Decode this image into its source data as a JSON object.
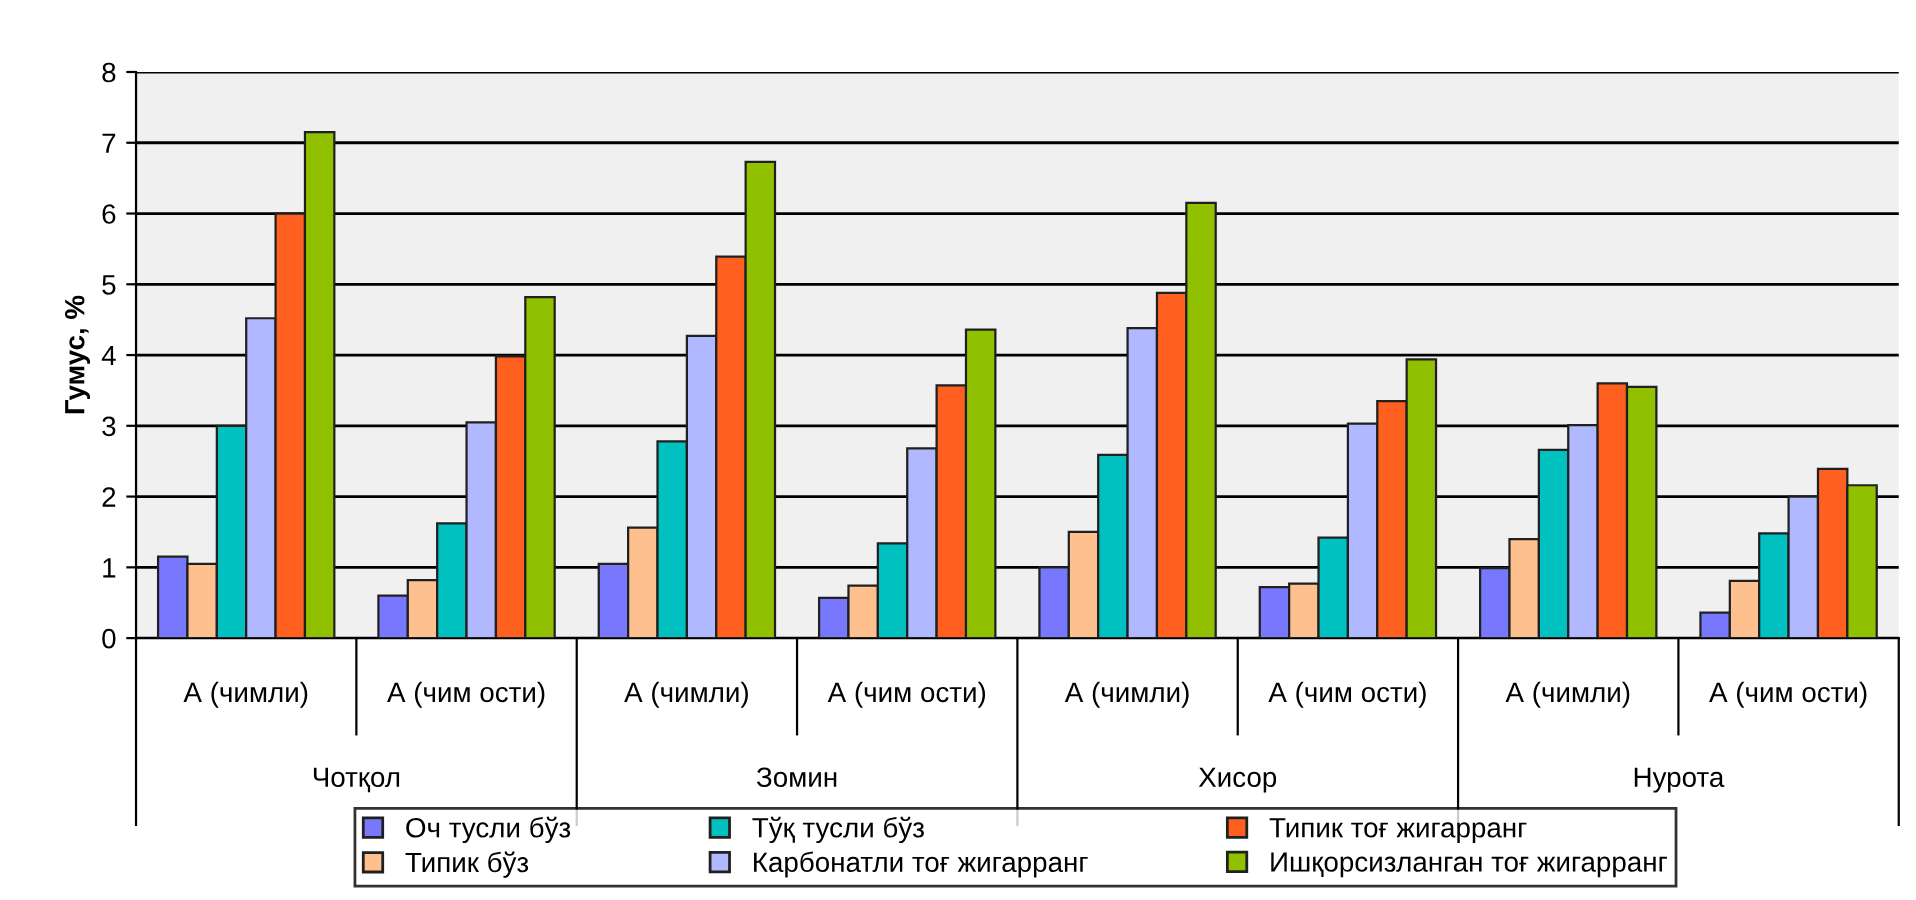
{
  "chart_data": {
    "type": "bar",
    "ylabel": "Гумус, %",
    "categories": [
      "А (чимли)",
      "А (чим ости)",
      "А (чимли)",
      "А (чим ости)",
      "А (чимли)",
      "А (чим ости)",
      "А (чимли)",
      "А (чим ости)"
    ],
    "annotations": [
      "Чотқол",
      "Зомин",
      "Хисор",
      "Нурота"
    ],
    "series": [
      {
        "name": "Оч тусли бўз",
        "color": "#7878ff",
        "values": [
          1.15,
          0.6,
          1.05,
          0.57,
          1.0,
          0.72,
          0.99,
          0.36
        ]
      },
      {
        "name": "Типик бўз",
        "color": "#ffc090",
        "values": [
          1.05,
          0.82,
          1.56,
          0.74,
          1.5,
          0.77,
          1.4,
          0.81
        ]
      },
      {
        "name": "Тўқ тусли бўз",
        "color": "#00c0c0",
        "values": [
          3.0,
          1.62,
          2.78,
          1.34,
          2.59,
          1.42,
          2.66,
          1.48
        ]
      },
      {
        "name": "Карбонатли тоғ жигарранг",
        "color": "#b0b8ff",
        "values": [
          4.52,
          3.05,
          4.27,
          2.68,
          4.38,
          3.03,
          3.01,
          2.0
        ]
      },
      {
        "name": "Типик тоғ жигарранг",
        "color": "#ff6020",
        "values": [
          6.0,
          3.98,
          5.39,
          3.57,
          4.88,
          3.35,
          3.6,
          2.39
        ]
      },
      {
        "name": "Ишқорсизланган тоғ жигарранг",
        "color": "#90c000",
        "values": [
          7.15,
          4.82,
          6.73,
          4.36,
          6.15,
          3.94,
          3.55,
          2.16
        ]
      }
    ],
    "ylim": [
      0,
      8
    ],
    "yticks": [
      0,
      1,
      2,
      3,
      4,
      5,
      6,
      7,
      8
    ],
    "grid": "y",
    "legend": "bottom"
  }
}
